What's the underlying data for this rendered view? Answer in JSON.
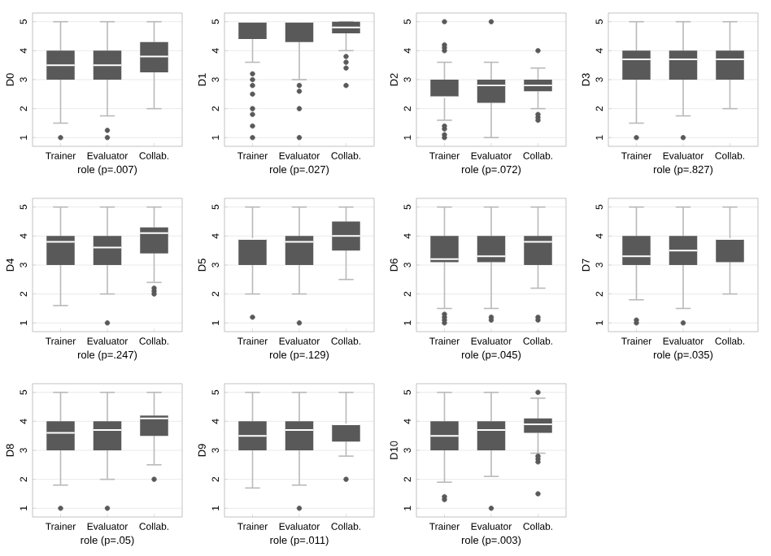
{
  "chart_data": [
    {
      "type": "box",
      "ylabel": "D0",
      "xlabel": "role (p=.007)",
      "categories": [
        "Trainer",
        "Evaluator",
        "Collab."
      ],
      "color": "#595959",
      "marker": "circle",
      "grid": "y",
      "ylim": [
        0.7,
        5.3
      ],
      "yticks": [
        1,
        2,
        3,
        4,
        5
      ],
      "boxes": [
        {
          "low": 1.5,
          "q1": 3,
          "median": 3.5,
          "q3": 4,
          "high": 5,
          "outliers": [
            1
          ]
        },
        {
          "low": 1.75,
          "q1": 3,
          "median": 3.5,
          "q3": 4,
          "high": 5,
          "outliers": [
            1,
            1.25
          ]
        },
        {
          "low": 2,
          "q1": 3.25,
          "median": 3.8,
          "q3": 4.3,
          "high": 5
        }
      ]
    },
    {
      "type": "box",
      "ylabel": "D1",
      "xlabel": "role (p=.027)",
      "categories": [
        "Trainer",
        "Evaluator",
        "Collab."
      ],
      "color": "#595959",
      "marker": "circle",
      "grid": "y",
      "ylim": [
        0.7,
        5.3
      ],
      "yticks": [
        1,
        2,
        3,
        4,
        5
      ],
      "boxes": [
        {
          "low": 3.6,
          "q1": 4.4,
          "median": 5,
          "q3": 5,
          "high": 5,
          "outliers": [
            1,
            1.4,
            1.8,
            2,
            2.5,
            2.8,
            3,
            3.2
          ]
        },
        {
          "low": 3,
          "q1": 4.3,
          "median": 5,
          "q3": 5,
          "high": 5,
          "outliers": [
            1,
            2,
            2.6,
            2.8
          ]
        },
        {
          "low": 4,
          "q1": 4.6,
          "median": 4.8,
          "q3": 5,
          "high": 5,
          "outliers": [
            2.8,
            3.4,
            3.6,
            3.8
          ]
        }
      ]
    },
    {
      "type": "box",
      "ylabel": "D2",
      "xlabel": "role (p=.072)",
      "categories": [
        "Trainer",
        "Evaluator",
        "Collab."
      ],
      "color": "#595959",
      "marker": "circle",
      "grid": "y",
      "ylim": [
        0.7,
        5.3
      ],
      "yticks": [
        1,
        2,
        3,
        4,
        5
      ],
      "boxes": [
        {
          "low": 1.6,
          "q1": 2.4,
          "median": 2.4,
          "q3": 3,
          "high": 3.6,
          "outliers": [
            1,
            1.1,
            1.3,
            1.4,
            4,
            4.1,
            4.2,
            5
          ]
        },
        {
          "low": 1,
          "q1": 2.2,
          "median": 2.8,
          "q3": 3,
          "high": 3.6,
          "outliers": [
            5
          ]
        },
        {
          "low": 2,
          "q1": 2.6,
          "median": 2.8,
          "q3": 3,
          "high": 3.4,
          "outliers": [
            1.6,
            1.7,
            1.8,
            4
          ]
        }
      ]
    },
    {
      "type": "box",
      "ylabel": "D3",
      "xlabel": "role (p=.827)",
      "categories": [
        "Trainer",
        "Evaluator",
        "Collab."
      ],
      "color": "#595959",
      "marker": "circle",
      "grid": "y",
      "ylim": [
        0.7,
        5.3
      ],
      "yticks": [
        1,
        2,
        3,
        4,
        5
      ],
      "boxes": [
        {
          "low": 1.5,
          "q1": 3,
          "median": 3.7,
          "q3": 4,
          "high": 5,
          "outliers": [
            1
          ]
        },
        {
          "low": 1.75,
          "q1": 3,
          "median": 3.7,
          "q3": 4,
          "high": 5,
          "outliers": [
            1
          ]
        },
        {
          "low": 2,
          "q1": 3,
          "median": 3.7,
          "q3": 4,
          "high": 5
        }
      ]
    },
    {
      "type": "box",
      "ylabel": "D4",
      "xlabel": "role (p=.247)",
      "categories": [
        "Trainer",
        "Evaluator",
        "Collab."
      ],
      "color": "#595959",
      "marker": "circle",
      "grid": "y",
      "ylim": [
        0.7,
        5.3
      ],
      "yticks": [
        1,
        2,
        3,
        4,
        5
      ],
      "boxes": [
        {
          "low": 1.6,
          "q1": 3,
          "median": 3.8,
          "q3": 4,
          "high": 5
        },
        {
          "low": 2,
          "q1": 3,
          "median": 3.6,
          "q3": 4,
          "high": 5,
          "outliers": [
            1
          ]
        },
        {
          "low": 2.4,
          "q1": 3.4,
          "median": 4.1,
          "q3": 4.3,
          "high": 5,
          "outliers": [
            2,
            2.1,
            2.2
          ]
        }
      ]
    },
    {
      "type": "box",
      "ylabel": "D5",
      "xlabel": "role (p=.129)",
      "categories": [
        "Trainer",
        "Evaluator",
        "Collab."
      ],
      "color": "#595959",
      "marker": "circle",
      "grid": "y",
      "ylim": [
        0.7,
        5.3
      ],
      "yticks": [
        1,
        2,
        3,
        4,
        5
      ],
      "boxes": [
        {
          "low": 2,
          "q1": 3,
          "median": 3.9,
          "q3": 3.9,
          "high": 5,
          "outliers": [
            1.2
          ]
        },
        {
          "low": 2,
          "q1": 3,
          "median": 3.8,
          "q3": 4,
          "high": 5,
          "outliers": [
            1
          ]
        },
        {
          "low": 2.5,
          "q1": 3.5,
          "median": 4,
          "q3": 4.5,
          "high": 5
        }
      ]
    },
    {
      "type": "box",
      "ylabel": "D6",
      "xlabel": "role (p=.045)",
      "categories": [
        "Trainer",
        "Evaluator",
        "Collab."
      ],
      "color": "#595959",
      "marker": "circle",
      "grid": "y",
      "ylim": [
        0.7,
        5.3
      ],
      "yticks": [
        1,
        2,
        3,
        4,
        5
      ],
      "boxes": [
        {
          "low": 1.5,
          "q1": 3.1,
          "median": 3.2,
          "q3": 4,
          "high": 5,
          "outliers": [
            1,
            1.1,
            1.2,
            1.3
          ]
        },
        {
          "low": 1.5,
          "q1": 3.1,
          "median": 3.3,
          "q3": 4,
          "high": 5,
          "outliers": [
            1.1,
            1.2
          ]
        },
        {
          "low": 2.2,
          "q1": 3,
          "median": 3.8,
          "q3": 4,
          "high": 5,
          "outliers": [
            1.1,
            1.2
          ]
        }
      ]
    },
    {
      "type": "box",
      "ylabel": "D7",
      "xlabel": "role (p=.035)",
      "categories": [
        "Trainer",
        "Evaluator",
        "Collab."
      ],
      "color": "#595959",
      "marker": "circle",
      "grid": "y",
      "ylim": [
        0.7,
        5.3
      ],
      "yticks": [
        1,
        2,
        3,
        4,
        5
      ],
      "boxes": [
        {
          "low": 1.8,
          "q1": 3,
          "median": 3.3,
          "q3": 4,
          "high": 5,
          "outliers": [
            1,
            1.1
          ]
        },
        {
          "low": 1.5,
          "q1": 3,
          "median": 3.5,
          "q3": 4,
          "high": 5,
          "outliers": [
            1
          ]
        },
        {
          "low": 2,
          "q1": 3.1,
          "median": 3.9,
          "q3": 3.9,
          "high": 5
        }
      ]
    },
    {
      "type": "box",
      "ylabel": "D8",
      "xlabel": "role (p=.05)",
      "categories": [
        "Trainer",
        "Evaluator",
        "Collab."
      ],
      "color": "#595959",
      "marker": "circle",
      "grid": "y",
      "ylim": [
        0.7,
        5.3
      ],
      "yticks": [
        1,
        2,
        3,
        4,
        5
      ],
      "boxes": [
        {
          "low": 1.8,
          "q1": 3,
          "median": 3.6,
          "q3": 4,
          "high": 5,
          "outliers": [
            1
          ]
        },
        {
          "low": 2,
          "q1": 3,
          "median": 3.7,
          "q3": 4,
          "high": 5,
          "outliers": [
            1
          ]
        },
        {
          "low": 2.5,
          "q1": 3.5,
          "median": 4.1,
          "q3": 4.2,
          "high": 5,
          "outliers": [
            2
          ]
        }
      ]
    },
    {
      "type": "box",
      "ylabel": "D9",
      "xlabel": "role (p=.011)",
      "categories": [
        "Trainer",
        "Evaluator",
        "Collab."
      ],
      "color": "#595959",
      "marker": "circle",
      "grid": "y",
      "ylim": [
        0.7,
        5.3
      ],
      "yticks": [
        1,
        2,
        3,
        4,
        5
      ],
      "boxes": [
        {
          "low": 1.7,
          "q1": 3,
          "median": 3.5,
          "q3": 4,
          "high": 5
        },
        {
          "low": 1.8,
          "q1": 3,
          "median": 3.7,
          "q3": 4,
          "high": 5,
          "outliers": [
            1
          ]
        },
        {
          "low": 2.8,
          "q1": 3.3,
          "median": 3.9,
          "q3": 3.9,
          "high": 5,
          "outliers": [
            2
          ]
        }
      ]
    },
    {
      "type": "box",
      "ylabel": "D10",
      "xlabel": "role (p=.003)",
      "categories": [
        "Trainer",
        "Evaluator",
        "Collab."
      ],
      "color": "#595959",
      "marker": "circle",
      "grid": "y",
      "ylim": [
        0.7,
        5.3
      ],
      "yticks": [
        1,
        2,
        3,
        4,
        5
      ],
      "boxes": [
        {
          "low": 1.9,
          "q1": 3,
          "median": 3.5,
          "q3": 4,
          "high": 5,
          "outliers": [
            1.3,
            1.4
          ]
        },
        {
          "low": 2.1,
          "q1": 3,
          "median": 3.7,
          "q3": 4,
          "high": 5,
          "outliers": [
            1
          ]
        },
        {
          "low": 2.9,
          "q1": 3.6,
          "median": 3.9,
          "q3": 4.1,
          "high": 4.8,
          "outliers": [
            1.5,
            2.6,
            2.7,
            2.8,
            5
          ]
        }
      ]
    }
  ]
}
